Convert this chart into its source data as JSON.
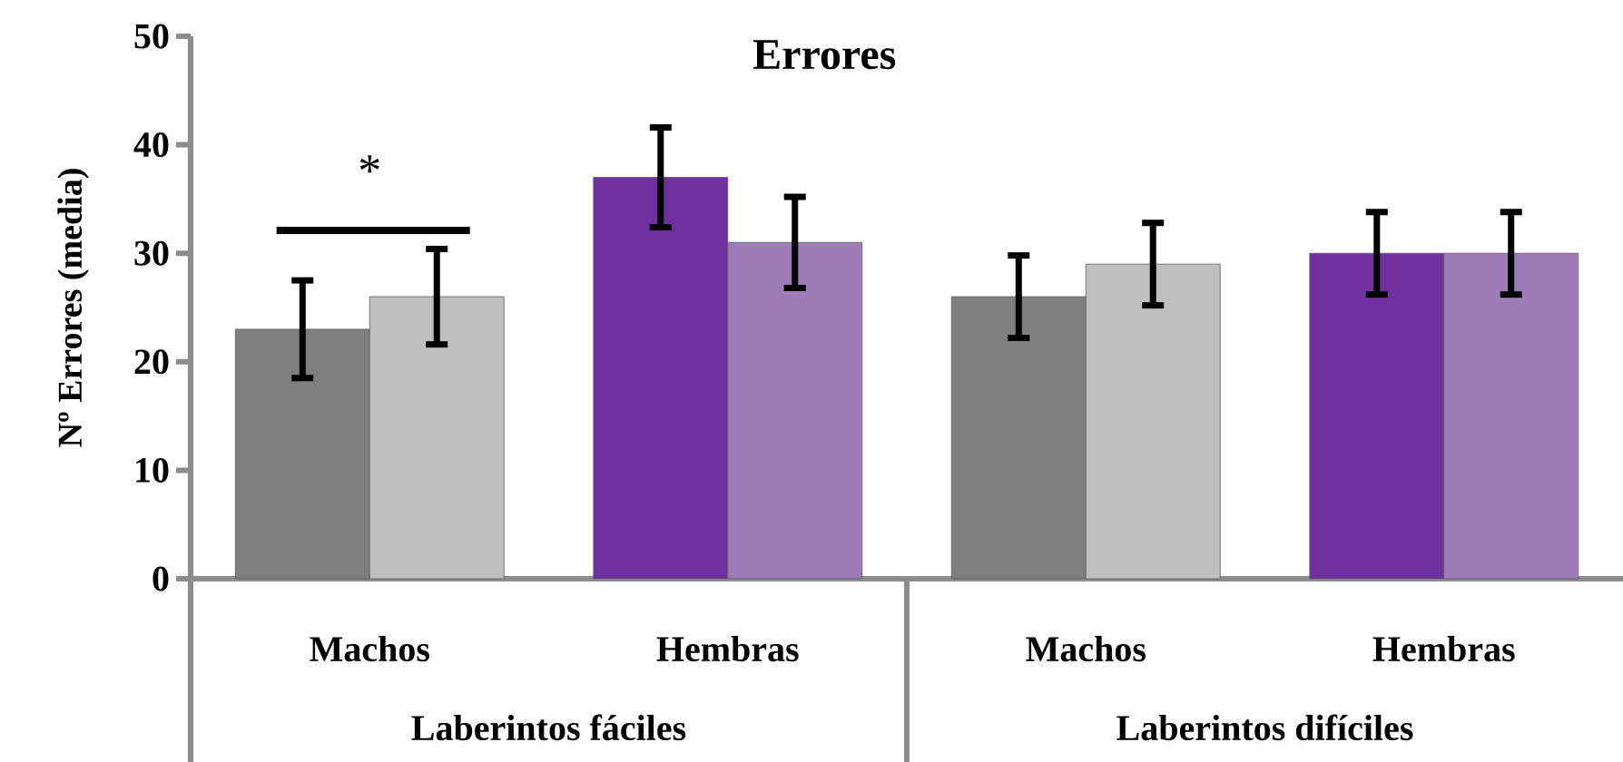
{
  "chart_data": {
    "type": "bar",
    "title": "Errores",
    "ylabel": "Nº Errores (media)",
    "categories": [
      "Machos",
      "Hembras",
      "Machos",
      "Hembras"
    ],
    "series": [
      {
        "colors": [
          "#7f7f7f",
          "#7030a0",
          "#7f7f7f",
          "#7030a0"
        ],
        "values": [
          23,
          37,
          26,
          30
        ],
        "errors": [
          4.5,
          4.6,
          3.8,
          3.8
        ]
      },
      {
        "colors": [
          "#bfbfbf",
          "#9e7cb8",
          "#bfbfbf",
          "#9e7cb8"
        ],
        "values": [
          26,
          31,
          29,
          30
        ],
        "errors": [
          4.4,
          4.2,
          3.8,
          3.8
        ]
      }
    ],
    "ylim": [
      0,
      50
    ],
    "yticks": [
      0,
      10,
      20,
      30,
      40,
      50
    ],
    "annotations": [
      "*",
      "Laberintos fáciles",
      "Laberintos difíciles"
    ]
  }
}
